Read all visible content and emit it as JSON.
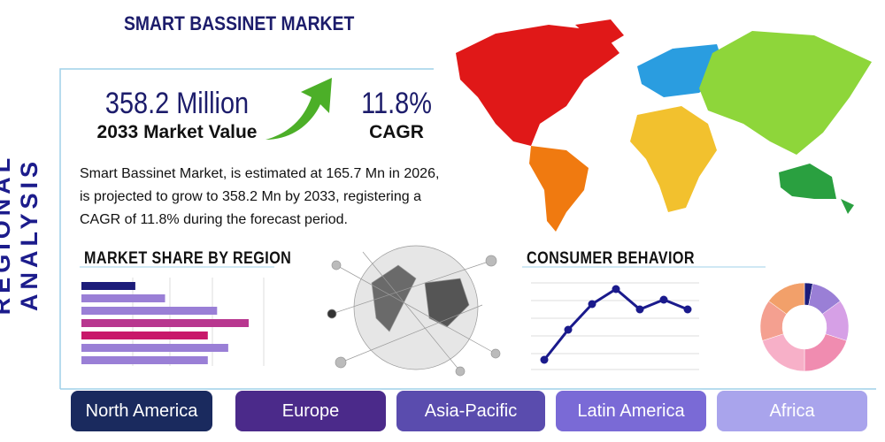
{
  "header": {
    "title": "SMART BASSINET MARKET",
    "side_title": "REGIONAL ANALYSIS"
  },
  "stats": [
    {
      "value": "358.2 Million",
      "label": "2033 Market Value"
    },
    {
      "value": "11.8%",
      "label": "CAGR"
    }
  ],
  "description": "Smart Bassinet Market, is estimated at 165.7 Mn in 2026, is projected to grow to 358.2 Mn by 2033, registering a CAGR of 11.8% during the forecast period.",
  "market_share_chart": {
    "type": "bar",
    "title": "MARKET SHARE BY REGION",
    "values": [
      29,
      45,
      73,
      90,
      68,
      79,
      68
    ],
    "xlim": [
      0,
      100
    ],
    "colors": [
      "#1c1c7a",
      "#9a7fd6",
      "#9a7fd6",
      "#b8378f",
      "#c8186a",
      "#9a7fd6",
      "#9a7fd6"
    ]
  },
  "consumer_chart": {
    "type": "line",
    "title": "CONSUMER BEHAVIOR",
    "values": [
      8,
      42,
      71,
      88,
      65,
      76,
      65
    ],
    "ylim": [
      0,
      100
    ],
    "color": "#1a1a8c"
  },
  "donut_chart": {
    "type": "pie",
    "values": [
      3,
      12,
      15,
      20,
      20,
      15,
      15
    ],
    "colors": [
      "#1c1c7a",
      "#9a7fd6",
      "#d6a0e6",
      "#f08cb0",
      "#f7b0c8",
      "#f4a090",
      "#f2a06a"
    ]
  },
  "regions": [
    "North America",
    "Europe",
    "Asia-Pacific",
    "Latin America",
    "Africa"
  ],
  "region_colors": [
    "#1a2a5e",
    "#4b2a8a",
    "#5a4cae",
    "#7a6ad6",
    "#a9a4ec"
  ]
}
